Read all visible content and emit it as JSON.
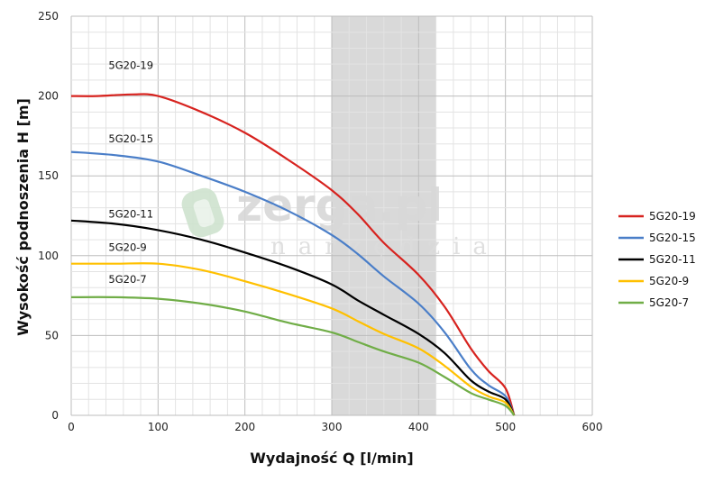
{
  "watermark": {
    "brand": "zerga.pl",
    "tagline": "narzędzia"
  },
  "chart_data": {
    "type": "line",
    "xlabel": "Wydajność Q [l/min]",
    "ylabel": "Wysokość podnoszenia H [m]",
    "xlim": [
      0,
      600
    ],
    "ylim": [
      0,
      250
    ],
    "xticks": [
      "0",
      "100",
      "200",
      "300",
      "400",
      "500",
      "600"
    ],
    "yticks": [
      "0",
      "50",
      "100",
      "150",
      "200",
      "250"
    ],
    "grid": true,
    "minor_grid_x": 20,
    "minor_grid_y": 10,
    "legend_position": "right",
    "shaded_region": {
      "x": [
        300,
        420
      ],
      "color": "#d9d9d9"
    },
    "series": [
      {
        "name": "5G20-19",
        "color": "#d7231f",
        "points": [
          [
            0,
            200
          ],
          [
            30,
            200
          ],
          [
            70,
            201
          ],
          [
            100,
            200
          ],
          [
            150,
            190
          ],
          [
            200,
            177
          ],
          [
            250,
            160
          ],
          [
            300,
            141
          ],
          [
            330,
            126
          ],
          [
            360,
            108
          ],
          [
            400,
            88
          ],
          [
            430,
            68
          ],
          [
            460,
            42
          ],
          [
            480,
            28
          ],
          [
            500,
            17
          ],
          [
            510,
            0
          ]
        ]
      },
      {
        "name": "5G20-15",
        "color": "#4a7ec8",
        "points": [
          [
            0,
            165
          ],
          [
            50,
            163
          ],
          [
            100,
            159
          ],
          [
            150,
            150
          ],
          [
            200,
            140
          ],
          [
            250,
            128
          ],
          [
            300,
            113
          ],
          [
            330,
            101
          ],
          [
            360,
            87
          ],
          [
            400,
            70
          ],
          [
            430,
            52
          ],
          [
            460,
            29
          ],
          [
            480,
            19
          ],
          [
            500,
            12
          ],
          [
            510,
            0
          ]
        ]
      },
      {
        "name": "5G20-11",
        "color": "#000000",
        "points": [
          [
            0,
            122
          ],
          [
            50,
            120
          ],
          [
            100,
            116
          ],
          [
            150,
            110
          ],
          [
            200,
            102
          ],
          [
            250,
            93
          ],
          [
            300,
            82
          ],
          [
            330,
            72
          ],
          [
            360,
            63
          ],
          [
            400,
            51
          ],
          [
            430,
            39
          ],
          [
            460,
            22
          ],
          [
            480,
            15
          ],
          [
            500,
            10
          ],
          [
            510,
            0
          ]
        ]
      },
      {
        "name": "5G20-9",
        "color": "#ffc000",
        "points": [
          [
            0,
            95
          ],
          [
            50,
            95
          ],
          [
            100,
            95
          ],
          [
            150,
            91
          ],
          [
            200,
            84
          ],
          [
            250,
            76
          ],
          [
            300,
            67
          ],
          [
            330,
            59
          ],
          [
            360,
            51
          ],
          [
            400,
            42
          ],
          [
            430,
            31
          ],
          [
            460,
            18
          ],
          [
            480,
            12
          ],
          [
            500,
            8
          ],
          [
            510,
            0
          ]
        ]
      },
      {
        "name": "5G20-7",
        "color": "#70ad47",
        "points": [
          [
            0,
            74
          ],
          [
            50,
            74
          ],
          [
            100,
            73
          ],
          [
            150,
            70
          ],
          [
            200,
            65
          ],
          [
            250,
            58
          ],
          [
            300,
            52
          ],
          [
            330,
            46
          ],
          [
            360,
            40
          ],
          [
            400,
            33
          ],
          [
            430,
            24
          ],
          [
            460,
            14
          ],
          [
            480,
            10
          ],
          [
            500,
            6
          ],
          [
            510,
            0
          ]
        ]
      }
    ],
    "curve_labels": [
      {
        "text": "5G20-19",
        "x": 43,
        "y": 217
      },
      {
        "text": "5G20-15",
        "x": 43,
        "y": 171
      },
      {
        "text": "5G20-11",
        "x": 43,
        "y": 124
      },
      {
        "text": "5G20-9",
        "x": 43,
        "y": 103
      },
      {
        "text": "5G20-7",
        "x": 43,
        "y": 83
      }
    ]
  }
}
